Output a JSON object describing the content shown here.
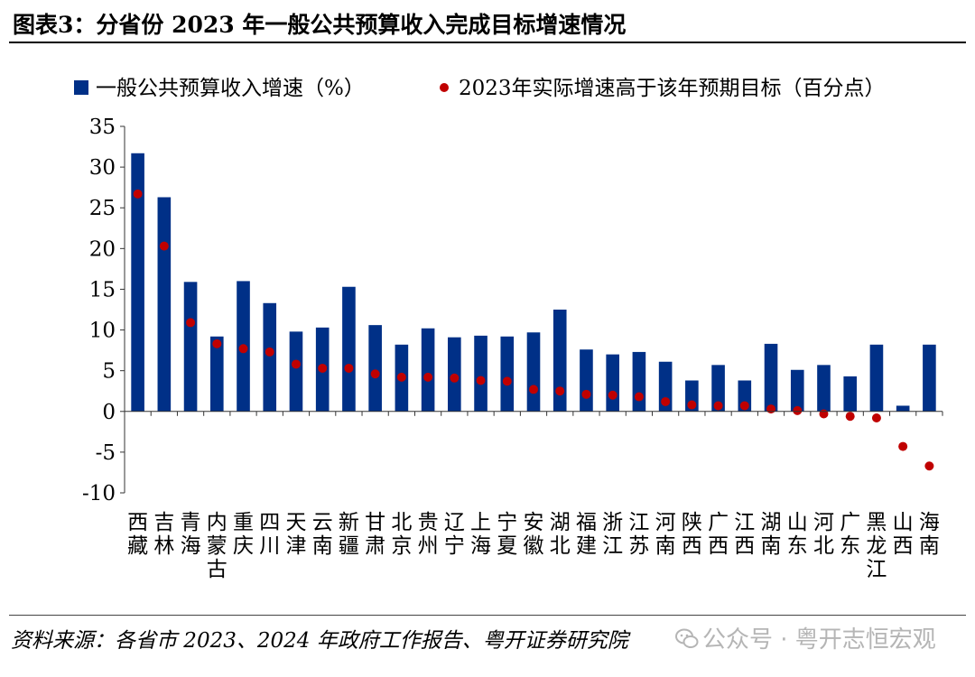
{
  "title": "图表3：分省份 2023 年一般公共预算收入完成目标增速情况",
  "source": "资料来源：各省市 2023、2024 年政府工作报告、粤开证券研究院",
  "watermark": "公众号 · 粤开志恒宏观",
  "watermark_icon": "wechat-icon",
  "colors": {
    "bar": "#003087",
    "dot": "#c00000",
    "axis": "#333333"
  },
  "chart_data": {
    "type": "bar",
    "title": "",
    "xlabel": "",
    "ylabel": "",
    "ylim": [
      -10,
      35
    ],
    "yticks": [
      35,
      30,
      25,
      20,
      15,
      10,
      5,
      0,
      -5,
      -10
    ],
    "legend_position": "top",
    "categories": [
      [
        "西",
        "藏"
      ],
      [
        "吉",
        "林"
      ],
      [
        "青",
        "海"
      ],
      [
        "内",
        "蒙",
        "古"
      ],
      [
        "重",
        "庆"
      ],
      [
        "四",
        "川"
      ],
      [
        "天",
        "津"
      ],
      [
        "云",
        "南"
      ],
      [
        "新",
        "疆"
      ],
      [
        "甘",
        "肃"
      ],
      [
        "北",
        "京"
      ],
      [
        "贵",
        "州"
      ],
      [
        "辽",
        "宁"
      ],
      [
        "上",
        "海"
      ],
      [
        "宁",
        "夏"
      ],
      [
        "安",
        "徽"
      ],
      [
        "湖",
        "北"
      ],
      [
        "福",
        "建"
      ],
      [
        "浙",
        "江"
      ],
      [
        "江",
        "苏"
      ],
      [
        "河",
        "南"
      ],
      [
        "陕",
        "西"
      ],
      [
        "广",
        "西"
      ],
      [
        "江",
        "西"
      ],
      [
        "湖",
        "南"
      ],
      [
        "山",
        "东"
      ],
      [
        "河",
        "北"
      ],
      [
        "广",
        "东"
      ],
      [
        "黑",
        "龙",
        "江"
      ],
      [
        "山",
        "西"
      ],
      [
        "海",
        "南"
      ]
    ],
    "series": [
      {
        "name": "一般公共预算收入增速（%）",
        "type": "bar",
        "values": [
          31.7,
          26.3,
          15.9,
          9.2,
          16.0,
          13.3,
          9.8,
          10.3,
          15.3,
          10.6,
          8.2,
          10.2,
          9.1,
          9.3,
          9.2,
          9.7,
          12.5,
          7.6,
          7.0,
          7.3,
          6.1,
          3.8,
          5.7,
          3.8,
          8.3,
          5.1,
          5.7,
          4.3,
          8.2,
          0.7,
          8.2
        ]
      },
      {
        "name": "2023年实际增速高于该年预期目标（百分点）",
        "type": "scatter",
        "values": [
          26.7,
          20.3,
          10.9,
          8.3,
          7.7,
          7.3,
          5.8,
          5.3,
          5.3,
          4.6,
          4.2,
          4.2,
          4.1,
          3.8,
          3.7,
          2.7,
          2.5,
          2.1,
          2.0,
          1.8,
          1.2,
          0.8,
          0.7,
          0.7,
          0.3,
          0.1,
          -0.3,
          -0.6,
          -0.8,
          -4.3,
          -6.7
        ]
      }
    ]
  }
}
